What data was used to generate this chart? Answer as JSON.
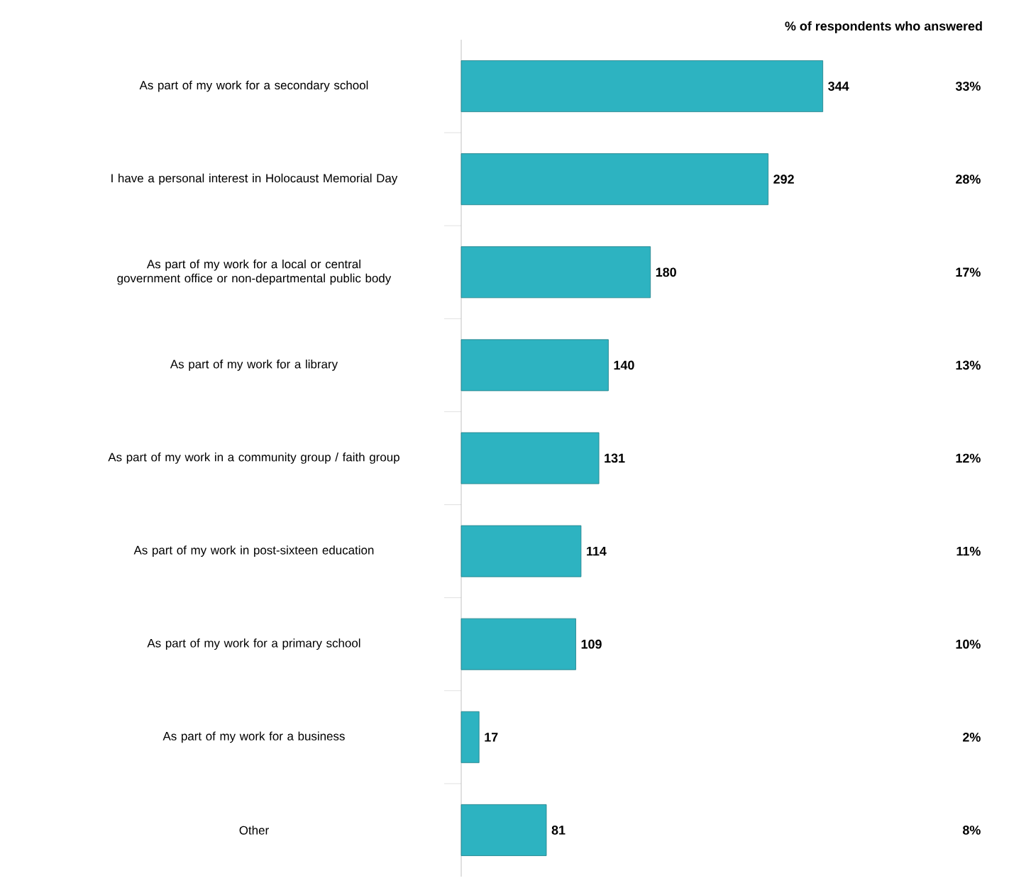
{
  "chart_data": {
    "type": "bar",
    "orientation": "horizontal",
    "color": "#2db3c1",
    "data_labels": true,
    "categories": [
      "As part of my work for a secondary school",
      "I have a personal interest in Holocaust Memorial Day",
      "As part of my work for a local or central government office or non-departmental public body",
      "As part of my work for a library",
      "As part of my work in a community group / faith group",
      "As part of my work in post-sixteen education",
      "As part of my work for a primary school",
      "As part of my work for a business",
      "Other"
    ],
    "values": [
      344,
      292,
      180,
      140,
      131,
      114,
      109,
      17,
      81
    ],
    "annotations": [
      "% of respondents who answered",
      "33%",
      "28%",
      "17%",
      "13%",
      "12%",
      "11%",
      "10%",
      "2%",
      "8%"
    ]
  }
}
